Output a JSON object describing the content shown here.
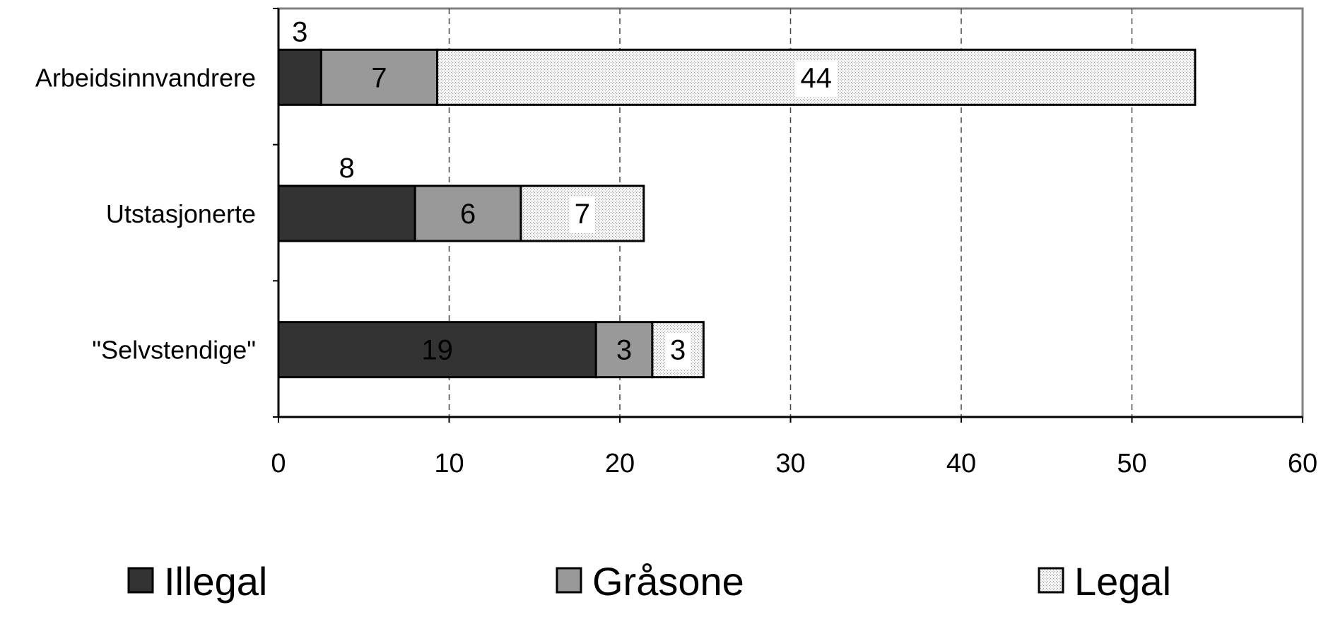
{
  "chart_data": {
    "type": "bar",
    "orientation": "horizontal",
    "stacked": true,
    "title": "",
    "xlabel": "",
    "ylabel": "",
    "xlim": [
      0,
      60
    ],
    "xticks": [
      "0",
      "10",
      "20",
      "30",
      "40",
      "50",
      "60"
    ],
    "grid": "vertical dashed",
    "legend_position": "bottom",
    "categories": [
      "Arbeidsinnvandrere",
      "Utstasjonerte",
      "\"Selvstendige\""
    ],
    "series": [
      {
        "name": "Illegal",
        "values": [
          2.5,
          8,
          18.6
        ],
        "labels": [
          "3",
          "8",
          "19"
        ],
        "color": "#333333",
        "pattern": "solid"
      },
      {
        "name": "Gråsone",
        "values": [
          6.8,
          6.2,
          3.3
        ],
        "labels": [
          "7",
          "6",
          "3"
        ],
        "color": "#999999",
        "pattern": "solid"
      },
      {
        "name": "Legal",
        "values": [
          44.4,
          7.2,
          3
        ],
        "labels": [
          "44",
          "7",
          "3"
        ],
        "color": "#eeeeee",
        "pattern": "dotted"
      }
    ]
  }
}
